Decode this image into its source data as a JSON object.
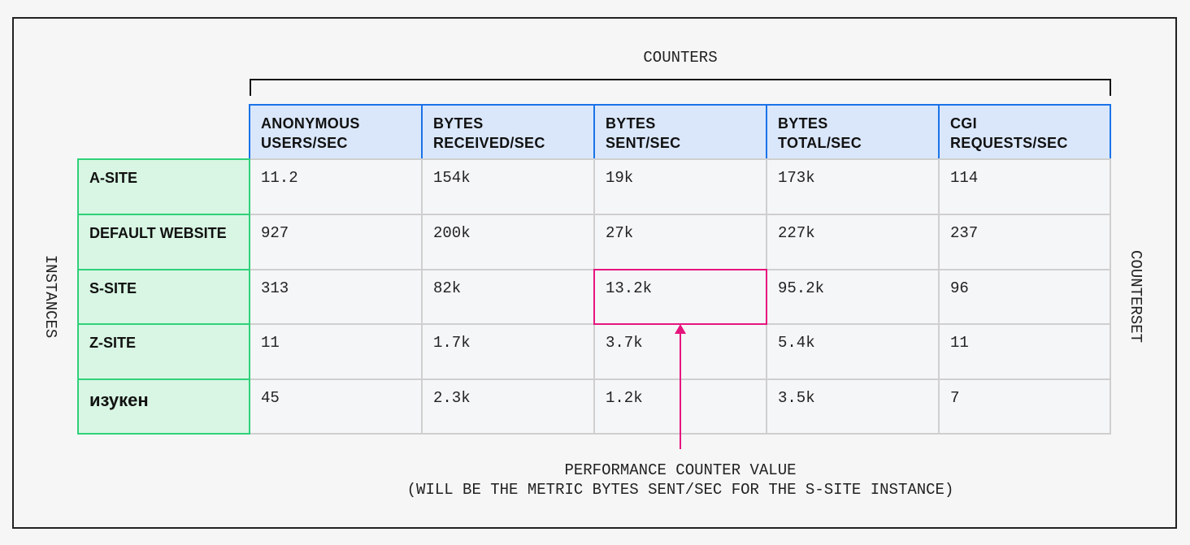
{
  "counters_label": "COUNTERS",
  "instances_label": "INSTANCES",
  "counterset_label": "COUNTERSET",
  "columns": [
    [
      "ANONYMOUS",
      "USERS/SEC"
    ],
    [
      "BYTES",
      "RECEIVED/SEC"
    ],
    [
      "BYTES",
      "SENT/SEC"
    ],
    [
      "BYTES",
      "TOTAL/SEC"
    ],
    [
      "CGI",
      "REQUESTS/SEC"
    ]
  ],
  "rows": [
    {
      "name": "A-SITE",
      "values": [
        "11.2",
        "154k",
        "19k",
        "173k",
        "114"
      ]
    },
    {
      "name": "DEFAULT WEBSITE",
      "values": [
        "927",
        "200k",
        "27k",
        "227k",
        "237"
      ]
    },
    {
      "name": "S-SITE",
      "values": [
        "313",
        "82k",
        "13.2k",
        "95.2k",
        "96"
      ]
    },
    {
      "name": "Z-SITE",
      "values": [
        "11",
        "1.7k",
        "3.7k",
        "5.4k",
        "11"
      ]
    },
    {
      "name": "изукен",
      "values": [
        "45",
        "2.3k",
        "1.2k",
        "3.5k",
        "7"
      ]
    }
  ],
  "caption": [
    "PERFORMANCE COUNTER VALUE",
    "(WILL BE THE METRIC BYTES SENT/SEC FOR THE S-SITE INSTANCE)"
  ]
}
